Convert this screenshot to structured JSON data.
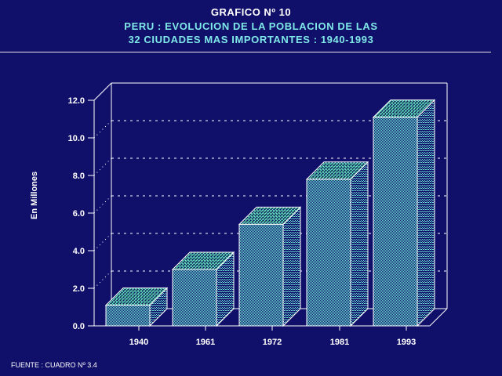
{
  "header": {
    "title": "GRAFICO Nº 10",
    "subtitle_line1": "PERU : EVOLUCION DE LA POBLACION DE LAS",
    "subtitle_line2": "32 CIUDADES MAS IMPORTANTES : 1940-1993"
  },
  "footer": {
    "source": "FUENTE : CUADRO Nº 3.4"
  },
  "colors": {
    "background": "#10106a",
    "bar_front": "#5fd6c8",
    "bar_top": "#3fa79c",
    "bar_side": "#2f8a80",
    "grid": "#ffffff",
    "axis": "#ffffff",
    "subtitle": "#7fe8e8"
  },
  "chart_data": {
    "type": "bar",
    "style": "3d",
    "title": "GRAFICO Nº 10",
    "subtitle": "PERU : EVOLUCION DE LA POBLACION DE LAS 32 CIUDADES MAS IMPORTANTES : 1940-1993",
    "xlabel": "",
    "ylabel": "En Millones",
    "categories": [
      "1940",
      "1961",
      "1972",
      "1981",
      "1993"
    ],
    "values": [
      1.1,
      3.0,
      5.4,
      7.8,
      11.1
    ],
    "ylim": [
      0,
      12
    ],
    "yticks": [
      0,
      2,
      4,
      6,
      8,
      10,
      12
    ],
    "ytick_labels": [
      "0.0",
      "2.0",
      "4.0",
      "6.0",
      "8.0",
      "10.0",
      "12.0"
    ],
    "grid": true,
    "grid_style": "dashed",
    "legend": "none",
    "source": "FUENTE : CUADRO Nº 3.4"
  }
}
